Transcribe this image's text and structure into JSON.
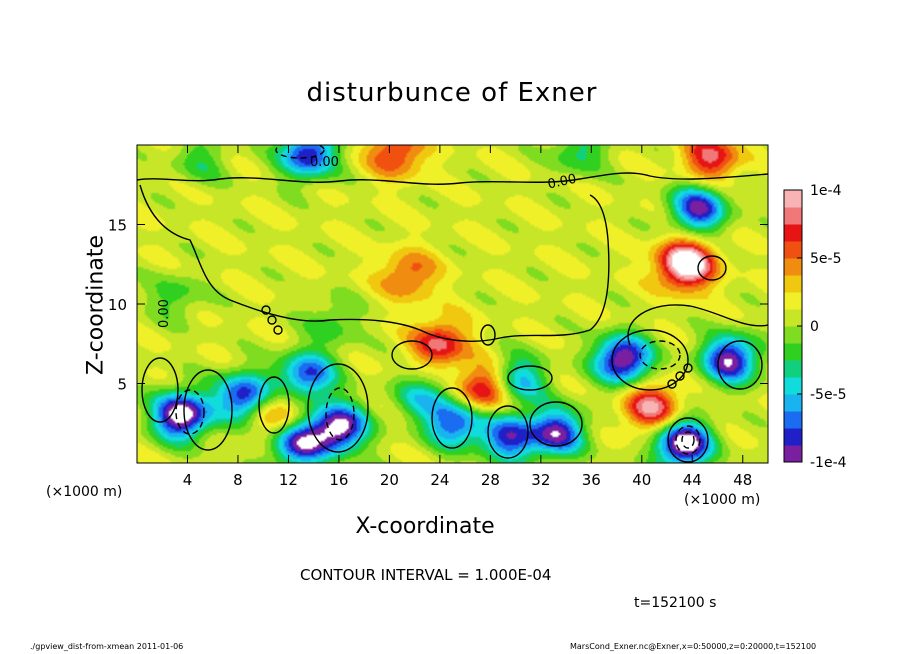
{
  "chart_data": {
    "type": "heatmap",
    "title": "disturbunce of Exner",
    "xlabel": "X-coordinate",
    "ylabel": "Z-coordinate",
    "x_unit_left": "(×1000 m)",
    "x_unit_right": "(×1000 m)",
    "xlim": [
      0,
      50
    ],
    "ylim": [
      0,
      20
    ],
    "x_ticks": [
      4,
      8,
      12,
      16,
      20,
      24,
      28,
      32,
      36,
      40,
      44,
      48
    ],
    "y_ticks": [
      5,
      10,
      15
    ],
    "colorbar": {
      "range": [
        -0.0001,
        0.0001
      ],
      "tick_labels": [
        "1e-4",
        "5e-5",
        "0",
        "-5e-5",
        "-1e-4"
      ],
      "tick_values": [
        0.0001,
        5e-05,
        0,
        -5e-05,
        -0.0001
      ],
      "colors": [
        "#7a1fa0",
        "#2020c8",
        "#1a6cf0",
        "#19b4f0",
        "#10dcdc",
        "#10d080",
        "#30d020",
        "#80dc20",
        "#c8e628",
        "#f0f028",
        "#f0c810",
        "#f08c10",
        "#f05010",
        "#e61414",
        "#f07878",
        "#f8b4b4"
      ]
    },
    "contour_interval": "CONTOUR INTERVAL = 1.000E-04",
    "contour_labels": [
      "0.00",
      "0.00",
      "0.00"
    ],
    "anomalies": [
      {
        "x": 44.5,
        "z": 16,
        "value": -0.0001
      },
      {
        "x": 43.5,
        "z": 12.5,
        "value": 0.00012
      },
      {
        "x": 38.5,
        "z": 6.5,
        "value": -0.00012
      },
      {
        "x": 47,
        "z": 6.5,
        "value": -0.00011
      },
      {
        "x": 21.5,
        "z": 11.8,
        "value": 5e-05
      },
      {
        "x": 24,
        "z": 7.5,
        "value": 7e-05
      },
      {
        "x": 3.5,
        "z": 3,
        "value": -0.00013
      },
      {
        "x": 8.5,
        "z": 4.2,
        "value": -0.0001
      },
      {
        "x": 16,
        "z": 2.2,
        "value": -0.00012
      },
      {
        "x": 12.8,
        "z": 1.2,
        "value": -0.0001
      },
      {
        "x": 25.2,
        "z": 2.5,
        "value": -9e-05
      },
      {
        "x": 29.5,
        "z": 1.6,
        "value": -9e-05
      },
      {
        "x": 33.3,
        "z": 1.9,
        "value": -0.0001
      },
      {
        "x": 43.3,
        "z": 1.2,
        "value": -0.00013
      },
      {
        "x": 13.5,
        "z": 5.5,
        "value": -9e-05
      },
      {
        "x": 22.7,
        "z": 4.2,
        "value": -5e-05
      },
      {
        "x": 30.2,
        "z": 5.2,
        "value": -7e-05
      },
      {
        "x": 11.2,
        "z": 3.1,
        "value": 5e-05
      },
      {
        "x": 27.5,
        "z": 4.6,
        "value": 8e-05
      },
      {
        "x": 40.8,
        "z": 3.5,
        "value": 8e-05
      },
      {
        "x": 15.5,
        "z": 8.8,
        "value": -3e-05
      },
      {
        "x": 3,
        "z": 10.5,
        "value": -3e-05
      },
      {
        "x": 20.5,
        "z": 19.5,
        "value": 6e-05
      },
      {
        "x": 45.5,
        "z": 19.2,
        "value": 7e-05
      },
      {
        "x": 13.5,
        "z": 19.4,
        "value": -0.0001
      },
      {
        "x": 35,
        "z": 19.6,
        "value": -4e-05
      },
      {
        "x": 5,
        "z": 19,
        "value": -3e-05
      }
    ]
  },
  "time_label": "t=152100 s",
  "footer_left": "./gpview_dist-from-xmean  2011-01-06",
  "footer_right": "MarsCond_Exner.nc@Exner,x=0:50000,z=0:20000,t=152100"
}
